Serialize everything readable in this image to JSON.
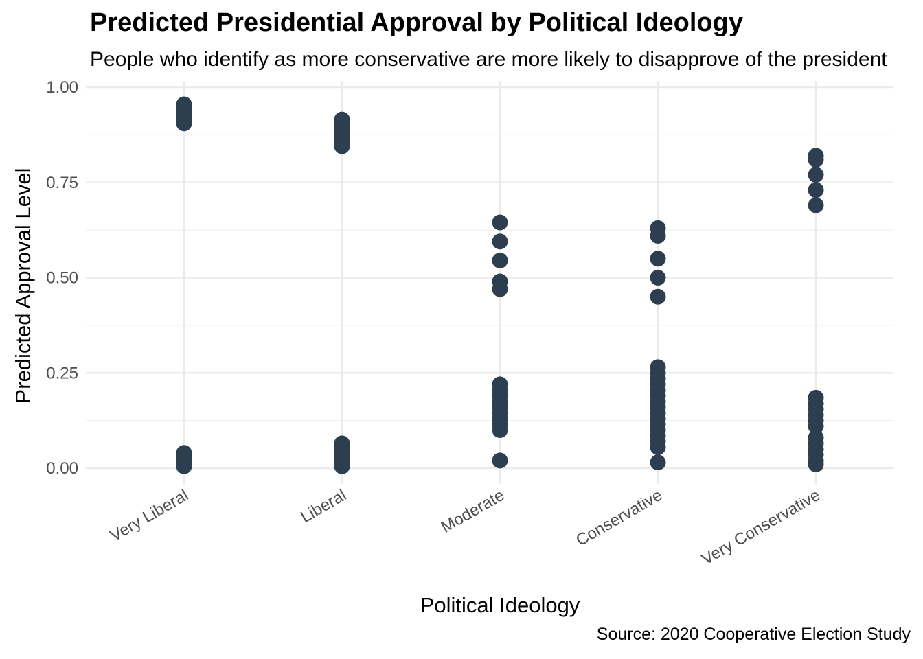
{
  "chart_data": {
    "type": "scatter",
    "title": "Predicted Presidential Approval by Political Ideology",
    "subtitle": "People who identify as more conservative are more likely to disapprove of the president",
    "caption": "Source: 2020 Cooperative Election Study",
    "xlabel": "Political Ideology",
    "ylabel": "Predicted Approval Level",
    "categories": [
      "Very Liberal",
      "Liberal",
      "Moderate",
      "Conservative",
      "Very Conservative"
    ],
    "ylim": [
      -0.05,
      1.0
    ],
    "yticks": [
      0.0,
      0.25,
      0.5,
      0.75,
      1.0
    ],
    "ytick_labels": [
      "0.00",
      "0.25",
      "0.50",
      "0.75",
      "1.00"
    ],
    "grid": true,
    "point_color": "#2c3e50",
    "series": [
      {
        "category": "Very Liberal",
        "y": [
          0.955,
          0.945,
          0.935,
          0.925,
          0.915,
          0.905,
          0.04,
          0.035,
          0.03,
          0.025,
          0.02,
          0.015,
          0.01,
          0.005
        ]
      },
      {
        "category": "Liberal",
        "y": [
          0.915,
          0.905,
          0.895,
          0.885,
          0.875,
          0.865,
          0.855,
          0.845,
          0.065,
          0.055,
          0.045,
          0.035,
          0.025,
          0.015,
          0.01,
          0.005
        ]
      },
      {
        "category": "Moderate",
        "y": [
          0.645,
          0.595,
          0.545,
          0.49,
          0.47,
          0.22,
          0.205,
          0.19,
          0.175,
          0.16,
          0.145,
          0.13,
          0.115,
          0.1,
          0.02
        ]
      },
      {
        "category": "Conservative",
        "y": [
          0.63,
          0.61,
          0.55,
          0.5,
          0.45,
          0.265,
          0.25,
          0.235,
          0.22,
          0.205,
          0.19,
          0.175,
          0.16,
          0.145,
          0.13,
          0.115,
          0.1,
          0.085,
          0.07,
          0.055,
          0.015
        ]
      },
      {
        "category": "Very Conservative",
        "y": [
          0.82,
          0.81,
          0.77,
          0.73,
          0.69,
          0.185,
          0.17,
          0.155,
          0.14,
          0.125,
          0.11,
          0.08,
          0.065,
          0.05,
          0.035,
          0.02,
          0.01
        ]
      }
    ]
  }
}
